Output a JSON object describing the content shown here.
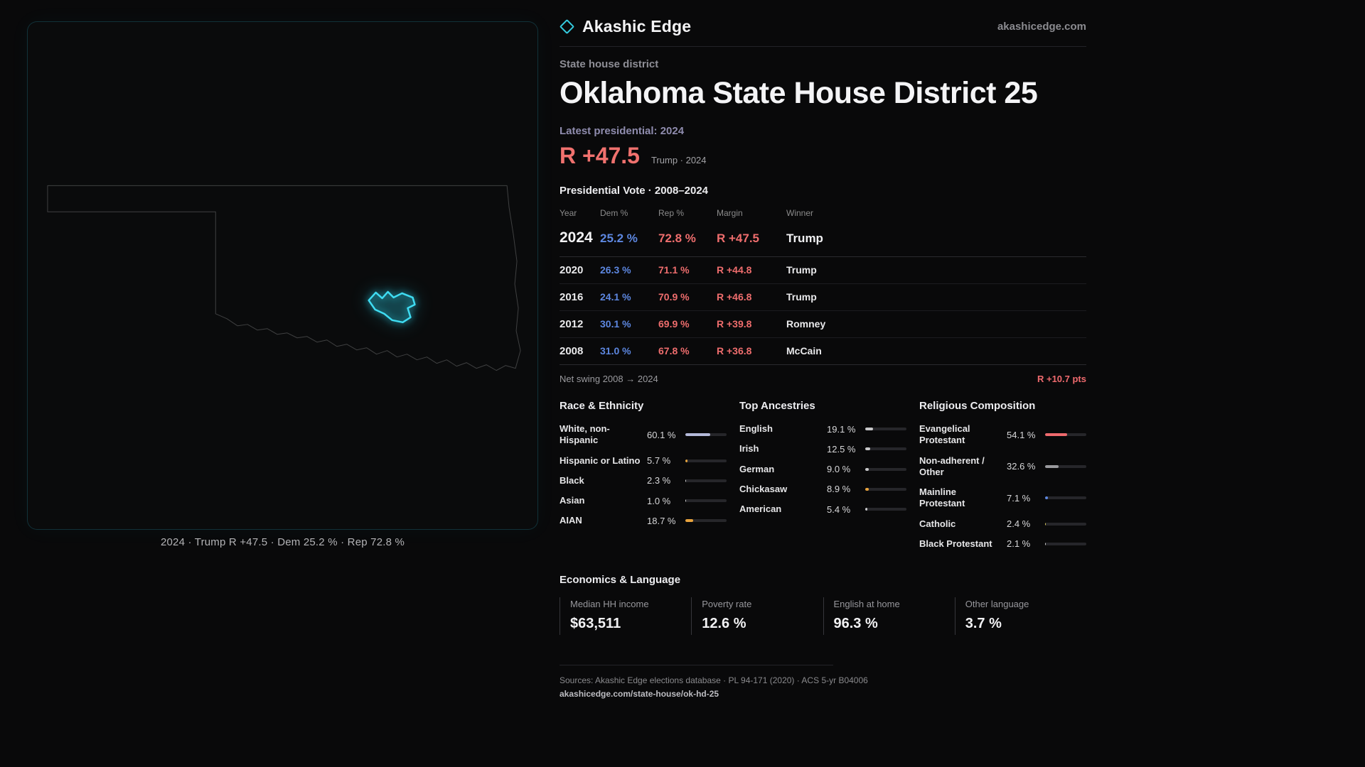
{
  "brand": {
    "name": "Akashic Edge",
    "site": "akashicedge.com"
  },
  "header": {
    "kicker": "State house district",
    "title": "Oklahoma State House District 25",
    "latest_label": "Latest presidential: 2024",
    "headline_margin": "R +47.5",
    "headline_note": "Trump · 2024"
  },
  "map": {
    "caption": "2024 · Trump R +47.5 · Dem 25.2 % · Rep 72.8 %",
    "district_color": "#2dd4ee"
  },
  "chart_data": {
    "vote_table": {
      "type": "table",
      "title": "Presidential Vote · 2008–2024",
      "columns": {
        "year": "Year",
        "dem": "Dem %",
        "rep": "Rep %",
        "margin": "Margin",
        "winner": "Winner"
      },
      "rows": [
        {
          "year": "2024",
          "dem": "25.2 %",
          "rep": "72.8 %",
          "margin": "R +47.5",
          "winner": "Trump"
        },
        {
          "year": "2020",
          "dem": "26.3 %",
          "rep": "71.1 %",
          "margin": "R +44.8",
          "winner": "Trump"
        },
        {
          "year": "2016",
          "dem": "24.1 %",
          "rep": "70.9 %",
          "margin": "R +46.8",
          "winner": "Trump"
        },
        {
          "year": "2012",
          "dem": "30.1 %",
          "rep": "69.9 %",
          "margin": "R +39.8",
          "winner": "Romney"
        },
        {
          "year": "2008",
          "dem": "31.0 %",
          "rep": "67.8 %",
          "margin": "R +36.8",
          "winner": "McCain"
        }
      ],
      "net_swing_label": "Net swing 2008 → 2024",
      "net_swing_value": "R +10.7 pts"
    },
    "race": {
      "type": "bar",
      "title": "Race & Ethnicity",
      "xlim": [
        0,
        100
      ],
      "items": [
        {
          "label": "White, non-Hispanic",
          "value": "60.1 %",
          "pct": 60.1,
          "color": "#b4b9d9"
        },
        {
          "label": "Hispanic or Latino",
          "value": "5.7 %",
          "pct": 5.7,
          "color": "#e3a23c"
        },
        {
          "label": "Black",
          "value": "2.3 %",
          "pct": 2.3,
          "color": "#d0d0d0"
        },
        {
          "label": "Asian",
          "value": "1.0 %",
          "pct": 1.0,
          "color": "#d0d0d0"
        },
        {
          "label": "AIAN",
          "value": "18.7 %",
          "pct": 18.7,
          "color": "#e8a33d"
        }
      ]
    },
    "ancestries": {
      "type": "bar",
      "title": "Top Ancestries",
      "xlim": [
        0,
        100
      ],
      "items": [
        {
          "label": "English",
          "value": "19.1 %",
          "pct": 19.1,
          "color": "#c8c8ca"
        },
        {
          "label": "Irish",
          "value": "12.5 %",
          "pct": 12.5,
          "color": "#c8c8ca"
        },
        {
          "label": "German",
          "value": "9.0 %",
          "pct": 9.0,
          "color": "#c8c8ca"
        },
        {
          "label": "Chickasaw",
          "value": "8.9 %",
          "pct": 8.9,
          "color": "#e8a33d"
        },
        {
          "label": "American",
          "value": "5.4 %",
          "pct": 5.4,
          "color": "#c8c8ca"
        }
      ]
    },
    "religion": {
      "type": "bar",
      "title": "Religious Composition",
      "xlim": [
        0,
        100
      ],
      "items": [
        {
          "label": "Evangelical Protestant",
          "value": "54.1 %",
          "pct": 54.1,
          "color": "#ef6a6e"
        },
        {
          "label": "Non-adherent / Other",
          "value": "32.6 %",
          "pct": 32.6,
          "color": "#9a9a9e"
        },
        {
          "label": "Mainline Protestant",
          "value": "7.1 %",
          "pct": 7.1,
          "color": "#5d87e0"
        },
        {
          "label": "Catholic",
          "value": "2.4 %",
          "pct": 2.4,
          "color": "#d9c95b"
        },
        {
          "label": "Black Protestant",
          "value": "2.1 %",
          "pct": 2.1,
          "color": "#d0d0d0"
        }
      ]
    },
    "economics": {
      "type": "stats",
      "title": "Economics & Language",
      "stats": [
        {
          "label": "Median HH income",
          "value": "$63,511"
        },
        {
          "label": "Poverty rate",
          "value": "12.6 %"
        },
        {
          "label": "English at home",
          "value": "96.3 %"
        },
        {
          "label": "Other language",
          "value": "3.7 %"
        }
      ]
    }
  },
  "footer": {
    "sources": "Sources: Akashic Edge elections database · PL 94-171 (2020) · ACS 5-yr B04006",
    "permalink": "akashicedge.com/state-house/ok-hd-25"
  },
  "colors": {
    "dem": "#5d87e0",
    "rep": "#ee6d6d",
    "accent": "#2dd4ee"
  }
}
